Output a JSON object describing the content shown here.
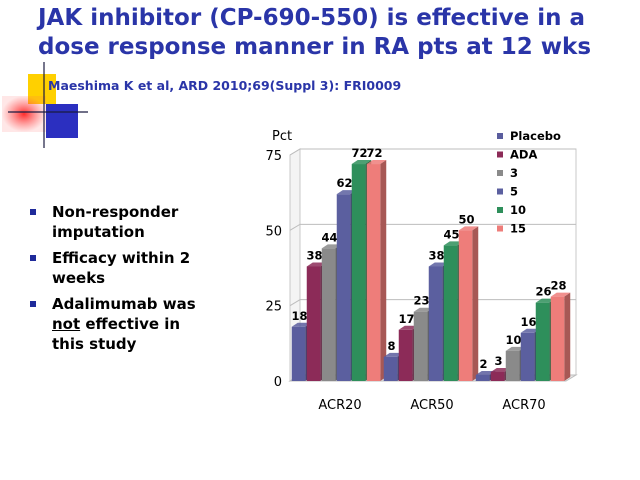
{
  "slide": {
    "title_line1": "JAK inhibitor (CP-690-550) is effective in a",
    "title_line2": "dose response manner in RA pts at 12 wks",
    "citation": "Maeshima K et al, ARD 2010;69(Suppl 3): FRI0009",
    "bullets": [
      {
        "text": "Non-responder imputation"
      },
      {
        "text": "Efficacy within 2 weeks"
      },
      {
        "pre": "Adalimumab was ",
        "underline": "not",
        "post": " effective in this study"
      }
    ]
  },
  "chart_data": {
    "type": "bar",
    "ylabel": "Pct",
    "categories": [
      "ACR20",
      "ACR50",
      "ACR70"
    ],
    "yticks": [
      0,
      25,
      50,
      75
    ],
    "ylim": [
      0,
      75
    ],
    "grid": true,
    "legend_position": "right",
    "series": [
      {
        "name": "Placebo",
        "color": "#5a5d9e",
        "values": [
          18,
          8,
          2
        ]
      },
      {
        "name": "ADA",
        "color": "#8c2b58",
        "values": [
          38,
          17,
          3
        ]
      },
      {
        "name": "3",
        "color": "#8a8a8a",
        "values": [
          44,
          23,
          10
        ]
      },
      {
        "name": "5",
        "color": "#5b5f9f",
        "values": [
          62,
          38,
          16
        ]
      },
      {
        "name": "10",
        "color": "#2e8f5b",
        "values": [
          72,
          45,
          26
        ]
      },
      {
        "name": "15",
        "color": "#ee7d7a",
        "values": [
          72,
          50,
          28
        ]
      }
    ]
  }
}
